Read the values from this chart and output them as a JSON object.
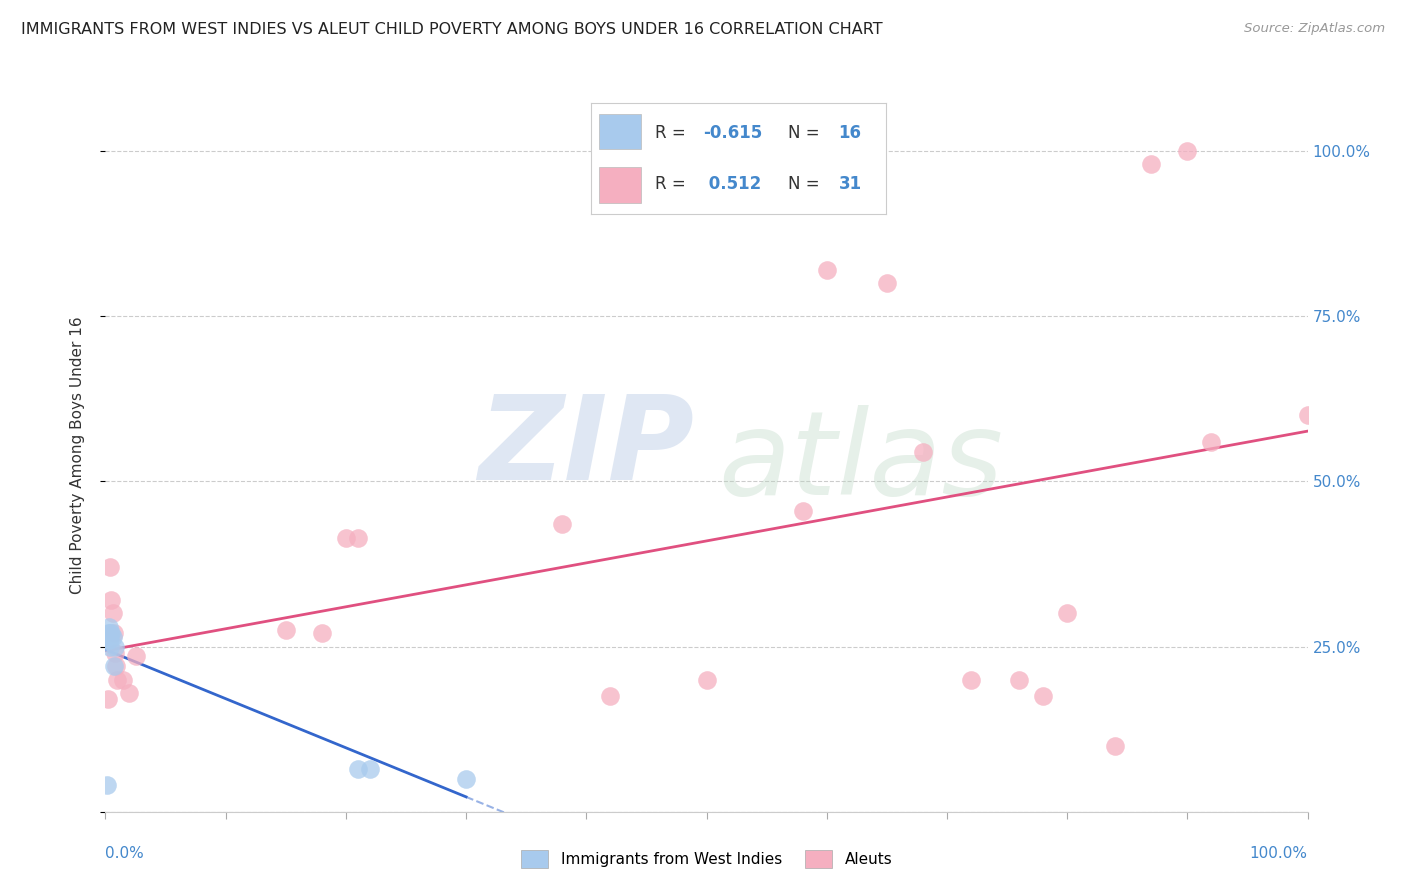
{
  "title": "IMMIGRANTS FROM WEST INDIES VS ALEUT CHILD POVERTY AMONG BOYS UNDER 16 CORRELATION CHART",
  "source": "Source: ZipAtlas.com",
  "ylabel": "Child Poverty Among Boys Under 16",
  "blue_R": -0.615,
  "blue_N": 16,
  "pink_R": 0.512,
  "pink_N": 31,
  "legend_label_blue": "Immigrants from West Indies",
  "legend_label_pink": "Aleuts",
  "blue_color": "#a8caed",
  "pink_color": "#f5afc0",
  "blue_line_color": "#3366cc",
  "pink_line_color": "#e05080",
  "background_color": "#ffffff",
  "blue_x": [
    0.001,
    0.002,
    0.002,
    0.003,
    0.003,
    0.003,
    0.004,
    0.004,
    0.004,
    0.005,
    0.006,
    0.007,
    0.008,
    0.21,
    0.22,
    0.3
  ],
  "blue_y": [
    0.04,
    0.27,
    0.26,
    0.28,
    0.265,
    0.26,
    0.27,
    0.265,
    0.25,
    0.27,
    0.265,
    0.22,
    0.25,
    0.065,
    0.065,
    0.05
  ],
  "pink_x": [
    0.002,
    0.004,
    0.005,
    0.006,
    0.007,
    0.008,
    0.009,
    0.01,
    0.015,
    0.02,
    0.025,
    0.15,
    0.18,
    0.2,
    0.21,
    0.38,
    0.42,
    0.5,
    0.58,
    0.6,
    0.65,
    0.68,
    0.72,
    0.76,
    0.78,
    0.8,
    0.84,
    0.87,
    0.9,
    0.92,
    1.0
  ],
  "pink_y": [
    0.17,
    0.37,
    0.32,
    0.3,
    0.27,
    0.24,
    0.22,
    0.2,
    0.2,
    0.18,
    0.235,
    0.275,
    0.27,
    0.415,
    0.415,
    0.435,
    0.175,
    0.2,
    0.455,
    0.82,
    0.8,
    0.545,
    0.2,
    0.2,
    0.175,
    0.3,
    0.1,
    0.98,
    1.0,
    0.56,
    0.6
  ]
}
